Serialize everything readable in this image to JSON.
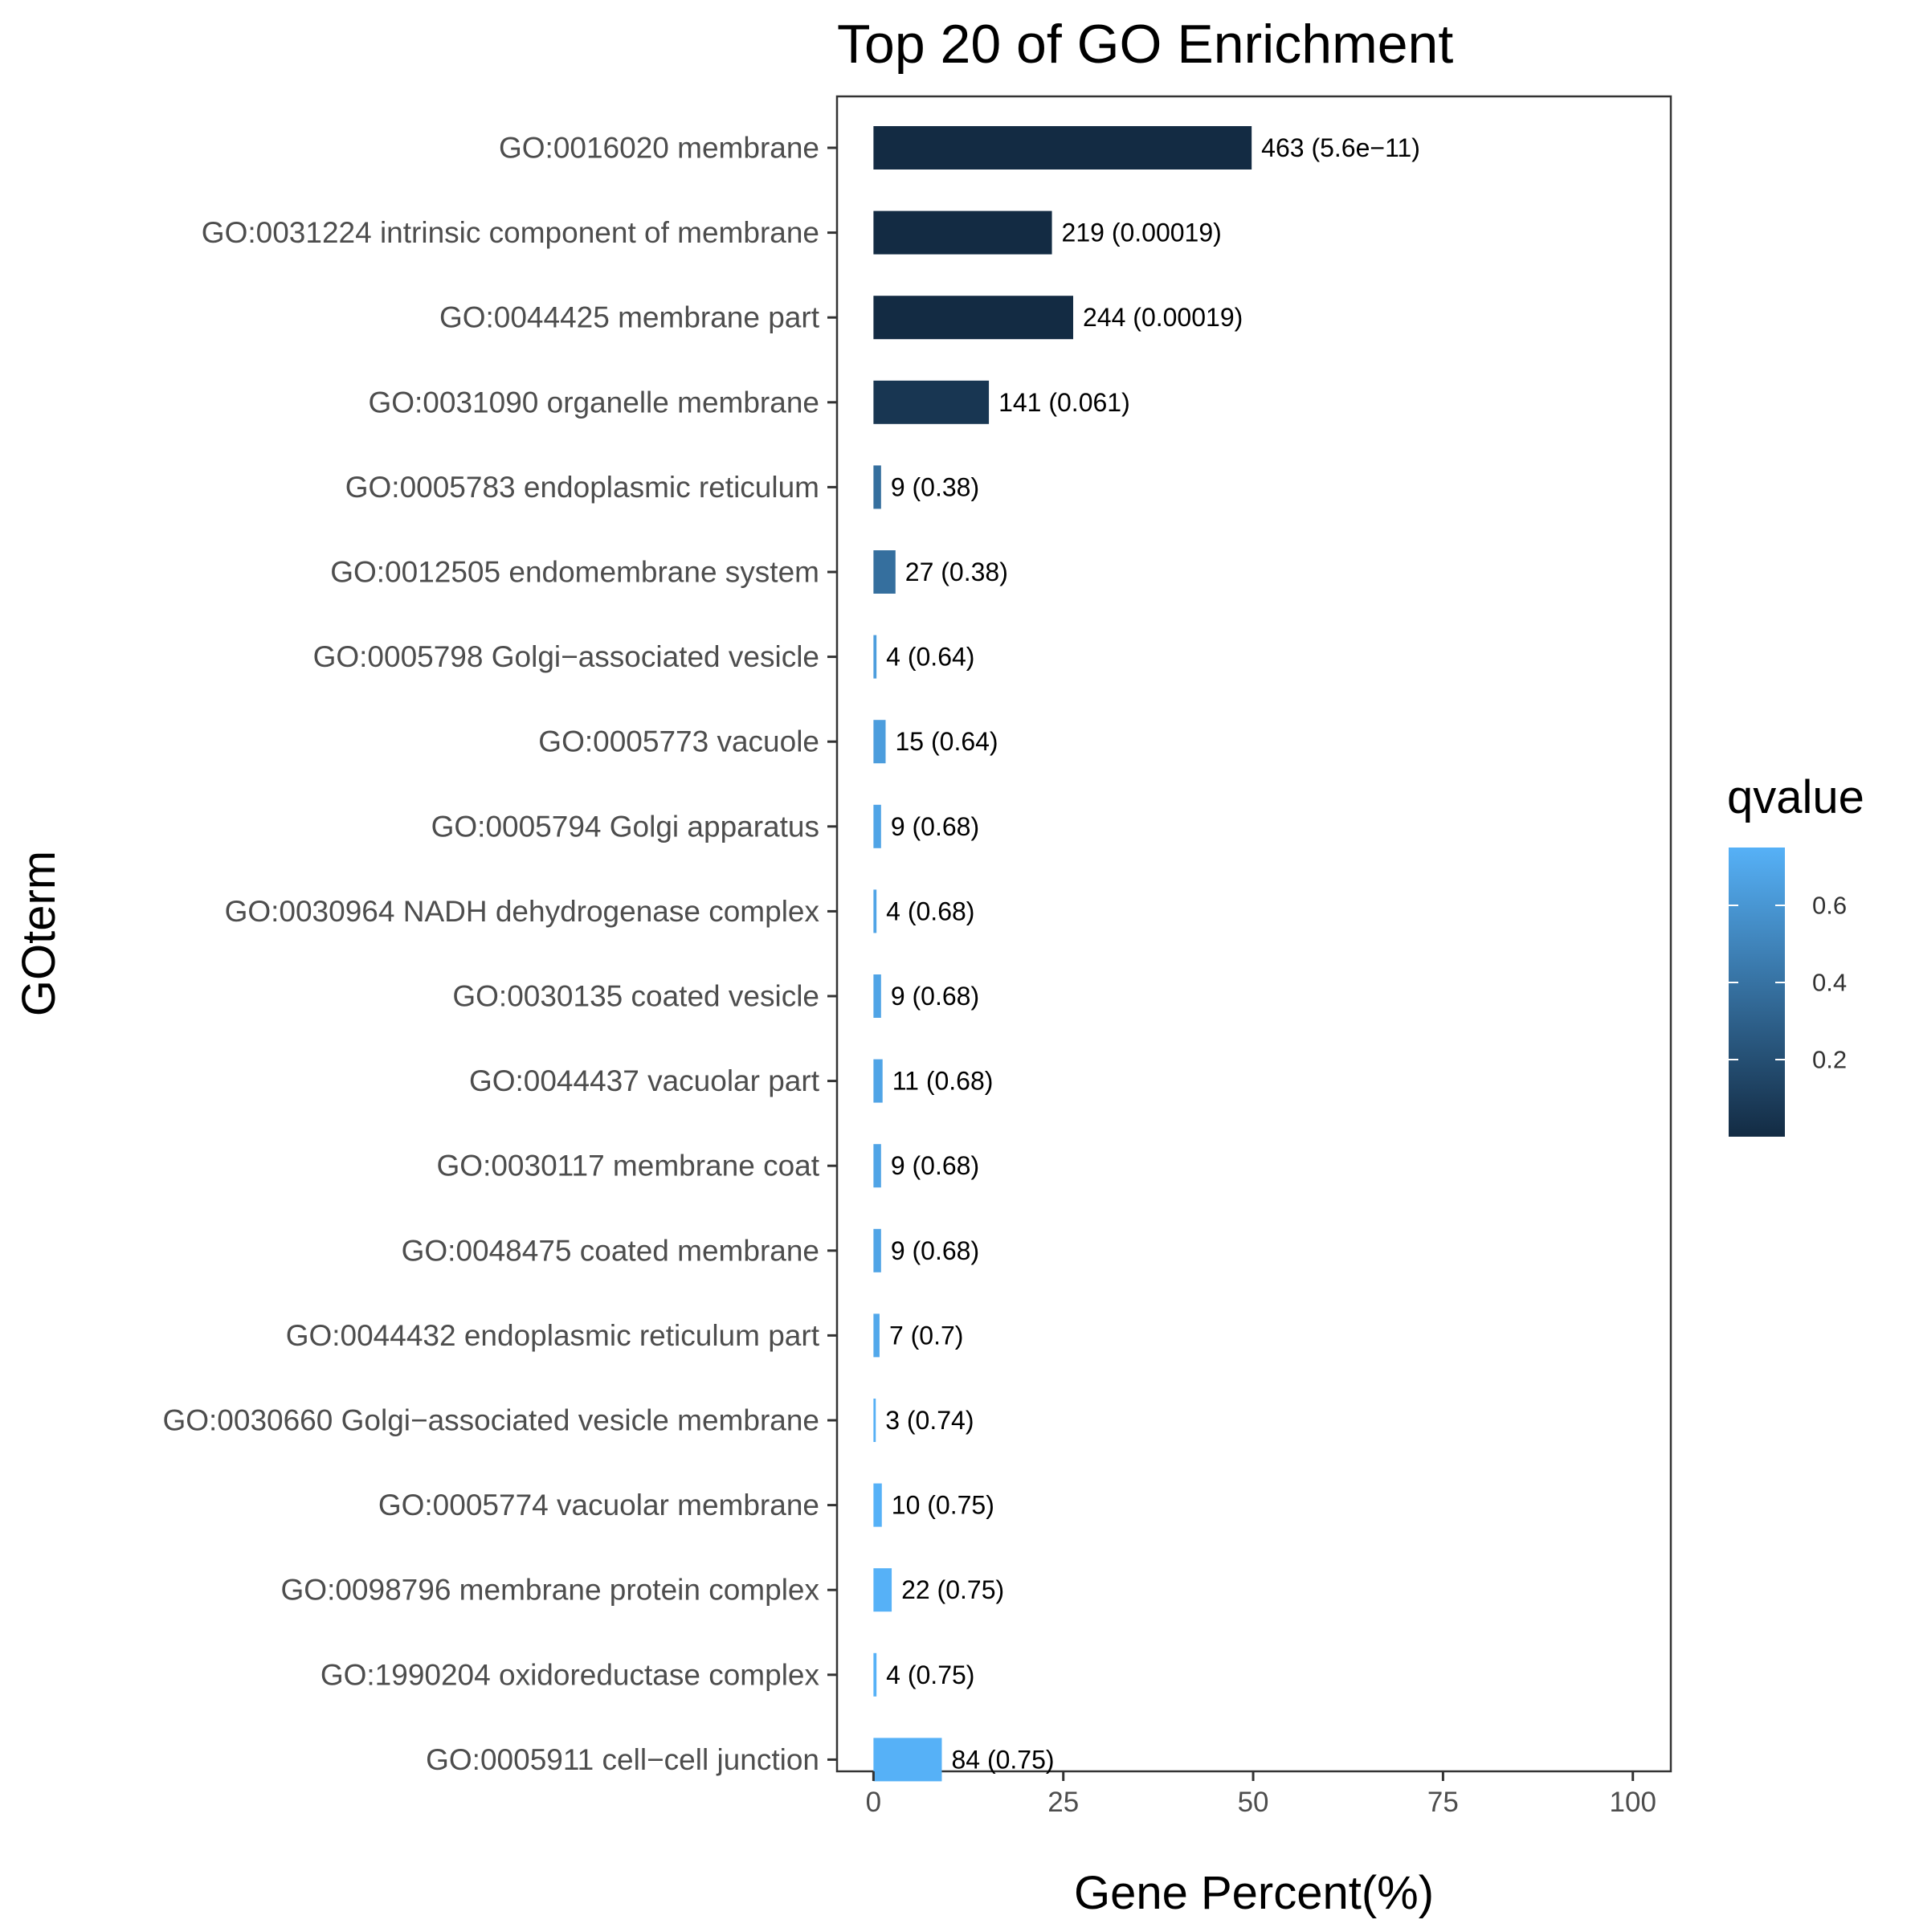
{
  "chart_data": {
    "type": "bar",
    "orientation": "horizontal",
    "title": "Top 20 of GO Enrichment",
    "xlabel": "Gene Percent(%)",
    "ylabel": "GOterm",
    "xlim": [
      -4.8,
      105
    ],
    "x_ticks": [
      0,
      25,
      50,
      75,
      100
    ],
    "grid": false,
    "legend_position": "right",
    "categories": [
      "GO:0016020 membrane",
      "GO:0031224 intrinsic component of membrane",
      "GO:0044425 membrane part",
      "GO:0031090 organelle membrane",
      "GO:0005783 endoplasmic reticulum",
      "GO:0012505 endomembrane system",
      "GO:0005798 Golgi−associated vesicle",
      "GO:0005773 vacuole",
      "GO:0005794 Golgi apparatus",
      "GO:0030964 NADH dehydrogenase complex",
      "GO:0030135 coated vesicle",
      "GO:0044437 vacuolar part",
      "GO:0030117 membrane coat",
      "GO:0048475 coated membrane",
      "GO:0044432 endoplasmic reticulum part",
      "GO:0030660 Golgi−associated vesicle membrane",
      "GO:0005774 vacuolar membrane",
      "GO:0098796 membrane protein complex",
      "GO:1990204 oxidoreductase complex",
      "GO:0005911 cell−cell junction"
    ],
    "values": [
      49.8,
      23.5,
      26.3,
      15.2,
      1.0,
      2.9,
      0.4,
      1.6,
      1.0,
      0.4,
      1.0,
      1.2,
      1.0,
      1.0,
      0.8,
      0.3,
      1.1,
      2.4,
      0.4,
      9.0
    ],
    "bar_labels": [
      "463 (5.6e−11)",
      "219 (0.00019)",
      "244 (0.00019)",
      "141 (0.061)",
      "9 (0.38)",
      "27 (0.38)",
      "4 (0.64)",
      "15 (0.64)",
      "9 (0.68)",
      "4 (0.68)",
      "9 (0.68)",
      "11 (0.68)",
      "9 (0.68)",
      "9 (0.68)",
      "7 (0.7)",
      "3 (0.74)",
      "10 (0.75)",
      "22 (0.75)",
      "4 (0.75)",
      "84 (0.75)"
    ],
    "qvalues": [
      5.6e-11,
      0.00019,
      0.00019,
      0.061,
      0.38,
      0.38,
      0.64,
      0.64,
      0.68,
      0.68,
      0.68,
      0.68,
      0.68,
      0.68,
      0.7,
      0.74,
      0.75,
      0.75,
      0.75,
      0.75
    ],
    "color_scale": {
      "title": "qvalue",
      "low_color": "#132b43",
      "high_color": "#56b1f7",
      "domain": [
        0,
        0.75
      ],
      "ticks": [
        0.2,
        0.4,
        0.6
      ],
      "tick_labels": [
        "0.2",
        "0.4",
        "0.6"
      ]
    }
  }
}
